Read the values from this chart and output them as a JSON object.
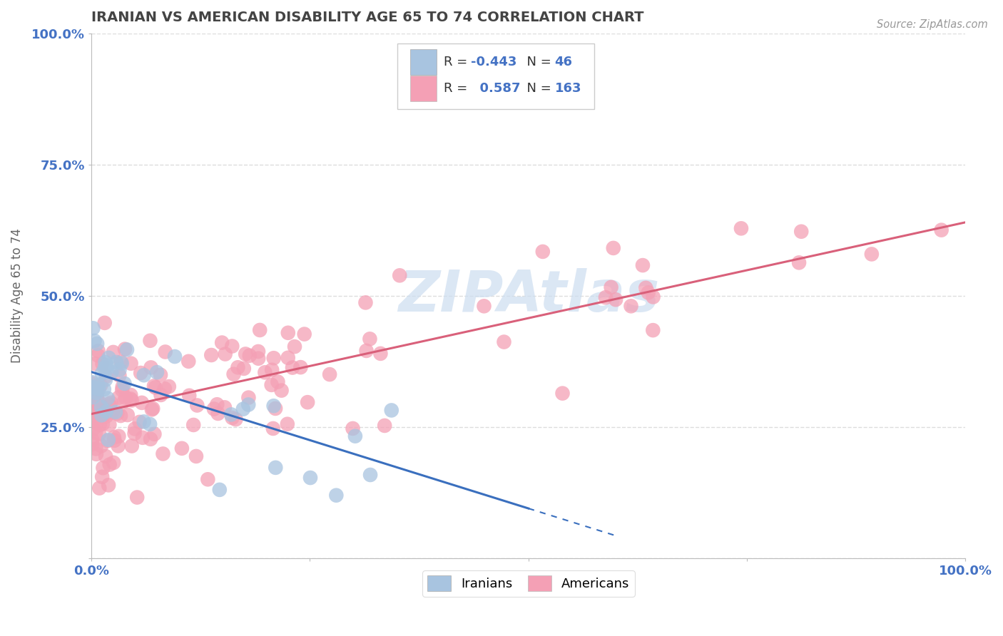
{
  "title": "IRANIAN VS AMERICAN DISABILITY AGE 65 TO 74 CORRELATION CHART",
  "source": "Source: ZipAtlas.com",
  "ylabel": "Disability Age 65 to 74",
  "xlim": [
    0,
    1
  ],
  "ylim": [
    0,
    1
  ],
  "iranian_R": -0.443,
  "iranian_N": 46,
  "american_R": 0.587,
  "american_N": 163,
  "iranian_color": "#a8c4e0",
  "american_color": "#f4a0b5",
  "iranian_line_color": "#3a6fbe",
  "american_line_color": "#d9607a",
  "watermark_color": "#ccddf0",
  "title_color": "#444444",
  "source_color": "#999999",
  "axis_label_color": "#4472c4",
  "ylabel_color": "#666666",
  "grid_color": "#dddddd",
  "legend_border_color": "#cccccc",
  "legend_text_color": "#333333",
  "legend_value_color": "#4472c4",
  "iran_line_intercept": 0.355,
  "iran_line_slope": -0.52,
  "amer_line_intercept": 0.275,
  "amer_line_slope": 0.365
}
